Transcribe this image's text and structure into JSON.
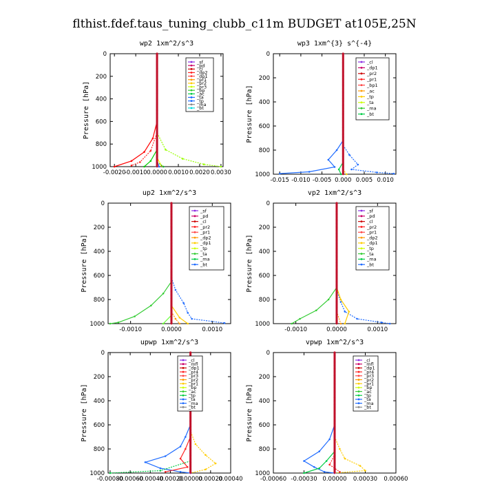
{
  "title": "flthist.fdef.taus_tuning_clubb_c11m  BUDGET at105E,25N",
  "chart_data": [
    {
      "type": "line",
      "title": "wp2  1xm^2/s^3",
      "ylabel": "Pressure [hPa]",
      "xlim": [
        -0.0022,
        0.0031
      ],
      "ylim": [
        1000,
        0
      ],
      "xticks": [
        "-0.0020",
        "-0.0010",
        "0.0000",
        "0.0010",
        "0.0020",
        "0.0030"
      ],
      "xtick_values": [
        -0.002,
        -0.001,
        0.0,
        0.001,
        0.002,
        0.003
      ],
      "yticks": [
        0,
        200,
        400,
        600,
        800,
        1000
      ],
      "legend": [
        "_sf",
        "_pd",
        "_cl",
        "_dp2",
        "_dp1",
        "_pr1",
        "_pr2",
        "_pr3",
        "_bp",
        "_ac",
        "_ta",
        "_tp",
        "_ma",
        "_bt"
      ],
      "series": [
        {
          "name": "_dp2",
          "color": "#ff0000",
          "points": [
            [
              0.0,
              0
            ],
            [
              0.0,
              600
            ],
            [
              -0.0002,
              750
            ],
            [
              -0.0006,
              870
            ],
            [
              -0.0012,
              950
            ],
            [
              -0.002,
              1000
            ]
          ]
        },
        {
          "name": "_dp1",
          "color": "#ff2222",
          "points": [
            [
              0.0,
              0
            ],
            [
              0.0,
              700
            ],
            [
              -0.0003,
              860
            ],
            [
              -0.0008,
              960
            ],
            [
              -0.0012,
              990
            ]
          ]
        },
        {
          "name": "_pr1",
          "color": "#ffff00",
          "points": [
            [
              0.0,
              0
            ],
            [
              0.0,
              920
            ],
            [
              0.0002,
              990
            ],
            [
              0.0003,
              1000
            ]
          ]
        },
        {
          "name": "_pr2",
          "color": "#99ff00",
          "points": [
            [
              0.0,
              0
            ],
            [
              0.0,
              700
            ],
            [
              0.0004,
              850
            ],
            [
              0.0012,
              930
            ],
            [
              0.0022,
              980
            ],
            [
              0.003,
              1000
            ]
          ]
        },
        {
          "name": "_bp",
          "color": "#00cc00",
          "points": [
            [
              0.0,
              0
            ],
            [
              0.0,
              850
            ],
            [
              -0.0003,
              950
            ],
            [
              -0.0006,
              1000
            ]
          ]
        },
        {
          "name": "_ac",
          "color": "#00aa44",
          "points": [
            [
              0.0,
              0
            ],
            [
              0.0,
              960
            ],
            [
              0.0003,
              1000
            ]
          ]
        },
        {
          "name": "_ta",
          "color": "#1e6bff",
          "points": [
            [
              0.0,
              0
            ],
            [
              0.0,
              950
            ],
            [
              0.0001,
              1000
            ]
          ]
        },
        {
          "name": "_sf",
          "color": "#8a2be2",
          "points": [
            [
              0.0,
              0
            ],
            [
              0.0,
              1000
            ]
          ]
        }
      ]
    },
    {
      "type": "line",
      "title": "wp3  1xm^{3} s^{-4}",
      "ylabel": "Pressure [hPa]",
      "xlim": [
        -0.0165,
        0.0125
      ],
      "ylim": [
        1000,
        0
      ],
      "xticks": [
        "-0.015",
        "-0.010",
        "-0.005",
        "0.000",
        "0.005",
        "0.010"
      ],
      "xtick_values": [
        -0.015,
        -0.01,
        -0.005,
        0.0,
        0.005,
        0.01
      ],
      "yticks": [
        0,
        200,
        400,
        600,
        800,
        1000
      ],
      "legend": [
        "_cl",
        "_dp1",
        "_pr2",
        "_pr1",
        "_bp1",
        "_ac",
        "_tp",
        "_ta",
        "_ma",
        "_bt"
      ],
      "series": [
        {
          "name": "_tp",
          "color": "#1e6bff",
          "points": [
            [
              0.0,
              0
            ],
            [
              0.0,
              720
            ],
            [
              -0.0015,
              800
            ],
            [
              -0.0035,
              880
            ],
            [
              -0.002,
              940
            ],
            [
              -0.008,
              980
            ],
            [
              -0.015,
              995
            ]
          ]
        },
        {
          "name": "_ta",
          "color": "#1e6bff",
          "points": [
            [
              0.0,
              0
            ],
            [
              0.0,
              760
            ],
            [
              0.0015,
              840
            ],
            [
              0.0035,
              920
            ],
            [
              0.002,
              960
            ],
            [
              0.008,
              985
            ],
            [
              0.012,
              995
            ]
          ]
        },
        {
          "name": "_ac",
          "color": "#00cc44",
          "points": [
            [
              0.0,
              0
            ],
            [
              0.0,
              900
            ],
            [
              -0.001,
              960
            ],
            [
              -0.0005,
              1000
            ]
          ]
        },
        {
          "name": "_pr1",
          "color": "#ffcc00",
          "points": [
            [
              0.0,
              0
            ],
            [
              0.0,
              960
            ],
            [
              0.0008,
              1000
            ]
          ]
        },
        {
          "name": "_cl",
          "color": "#cc0000",
          "points": [
            [
              0.0,
              0
            ],
            [
              0.0,
              1000
            ]
          ]
        }
      ]
    },
    {
      "type": "line",
      "title": "up2  1xm^2/s^3",
      "ylabel": "Pressure [hPa]",
      "xlim": [
        -0.00155,
        0.00145
      ],
      "ylim": [
        1000,
        0
      ],
      "xticks": [
        "-0.0010",
        "0.0000",
        "0.0010"
      ],
      "xtick_values": [
        -0.001,
        0.0,
        0.001
      ],
      "yticks": [
        0,
        200,
        400,
        600,
        800,
        1000
      ],
      "legend": [
        "_sf",
        "_pd",
        "_cl",
        "_pr2",
        "_pr1",
        "_dp2",
        "_dp1",
        "_tp",
        "_ta",
        "_ma",
        "_bt"
      ],
      "series": [
        {
          "name": "_dp1",
          "color": "#33cc33",
          "points": [
            [
              0.0,
              0
            ],
            [
              0.0,
              650
            ],
            [
              -0.0002,
              750
            ],
            [
              -0.0005,
              850
            ],
            [
              -0.0009,
              940
            ],
            [
              -0.0013,
              990
            ],
            [
              -0.0015,
              1000
            ]
          ]
        },
        {
          "name": "_tp",
          "color": "#1e6bff",
          "points": [
            [
              0.0,
              0
            ],
            [
              0.0,
              620
            ],
            [
              0.0001,
              720
            ],
            [
              0.0003,
              830
            ],
            [
              0.0004,
              910
            ],
            [
              0.0005,
              960
            ],
            [
              0.0013,
              995
            ]
          ]
        },
        {
          "name": "_pr1",
          "color": "#ffcc00",
          "points": [
            [
              0.0,
              0
            ],
            [
              0.0,
              850
            ],
            [
              0.0002,
              950
            ],
            [
              0.0004,
              1000
            ]
          ]
        },
        {
          "name": "_pr2",
          "color": "#ff9900",
          "points": [
            [
              0.0,
              0
            ],
            [
              0.0,
              900
            ],
            [
              0.0001,
              960
            ],
            [
              0.0002,
              1000
            ]
          ]
        },
        {
          "name": "_dp2",
          "color": "#66ff33",
          "points": [
            [
              0.0,
              0
            ],
            [
              0.0,
              930
            ],
            [
              -0.0002,
              1000
            ]
          ]
        },
        {
          "name": "_cl",
          "color": "#cc0000",
          "points": [
            [
              0.0,
              0
            ],
            [
              0.0,
              1000
            ]
          ]
        }
      ]
    },
    {
      "type": "line",
      "title": "vp2  1xm^2/s^3",
      "ylabel": "Pressure [hPa]",
      "xlim": [
        -0.00155,
        0.00145
      ],
      "ylim": [
        1000,
        0
      ],
      "xticks": [
        "-0.0010",
        "0.0000",
        "0.0010"
      ],
      "xtick_values": [
        -0.001,
        0.0,
        0.001
      ],
      "yticks": [
        0,
        200,
        400,
        600,
        800,
        1000
      ],
      "legend": [
        "_sf",
        "_pd",
        "_cl",
        "_pr2",
        "_pr1",
        "_dp2",
        "_dp1",
        "_tp",
        "_ta",
        "_ma",
        "_bt"
      ],
      "series": [
        {
          "name": "_dp1",
          "color": "#33cc33",
          "points": [
            [
              0.0,
              0
            ],
            [
              0.0,
              700
            ],
            [
              -0.0002,
              800
            ],
            [
              -0.0005,
              890
            ],
            [
              -0.0009,
              960
            ],
            [
              -0.0011,
              1000
            ]
          ]
        },
        {
          "name": "_tp",
          "color": "#1e6bff",
          "points": [
            [
              0.0,
              0
            ],
            [
              0.0,
              720
            ],
            [
              0.0001,
              820
            ],
            [
              0.0002,
              900
            ],
            [
              0.0005,
              960
            ],
            [
              0.0011,
              990
            ],
            [
              0.0013,
              1000
            ]
          ]
        },
        {
          "name": "_pr1",
          "color": "#ffcc00",
          "points": [
            [
              0.0,
              0
            ],
            [
              0.0,
              700
            ],
            [
              0.0001,
              800
            ],
            [
              0.0003,
              900
            ],
            [
              0.0002,
              1000
            ]
          ]
        },
        {
          "name": "_pr2",
          "color": "#ff9900",
          "points": [
            [
              0.0,
              0
            ],
            [
              0.0,
              900
            ],
            [
              0.0001,
              1000
            ]
          ]
        },
        {
          "name": "_cl",
          "color": "#cc0000",
          "points": [
            [
              0.0,
              0
            ],
            [
              0.0,
              1000
            ]
          ]
        }
      ]
    },
    {
      "type": "line",
      "title": "upwp  1xm^2/s^3",
      "ylabel": "Pressure [hPa]",
      "xlim": [
        -0.00082,
        0.0004
      ],
      "ylim": [
        1000,
        0
      ],
      "xticks": [
        "-0.00080",
        "-0.00060",
        "-0.00040",
        "-0.00020",
        "0.00000",
        "0.00020",
        "0.00040"
      ],
      "xtick_values": [
        -0.0008,
        -0.0006,
        -0.0004,
        -0.0002,
        0.0,
        0.0002,
        0.0004
      ],
      "yticks": [
        0,
        200,
        400,
        600,
        800,
        1000
      ],
      "legend": [
        "_cl",
        "_mfl",
        "_dp1",
        "_pr4",
        "_pr3",
        "_pr2",
        "_pr1",
        "_bp",
        "_ac",
        "_tp",
        "_ta",
        "_ma",
        "_bt"
      ],
      "series": [
        {
          "name": "_tp",
          "color": "#1e6bff",
          "points": [
            [
              0.0,
              0
            ],
            [
              0.0,
              600
            ],
            [
              -5e-05,
              700
            ],
            [
              -0.0001,
              780
            ],
            [
              -0.00025,
              860
            ],
            [
              -0.00045,
              910
            ],
            [
              -0.0003,
              960
            ],
            [
              -0.0001,
              990
            ],
            [
              0.0,
              1000
            ]
          ]
        },
        {
          "name": "_pr1",
          "color": "#ffcc00",
          "points": [
            [
              0.0,
              0
            ],
            [
              0.0,
              650
            ],
            [
              5e-05,
              760
            ],
            [
              0.00015,
              850
            ],
            [
              0.00025,
              920
            ],
            [
              0.00015,
              970
            ],
            [
              0.0,
              1000
            ]
          ]
        },
        {
          "name": "_dp1",
          "color": "#ff2222",
          "points": [
            [
              0.0,
              0
            ],
            [
              0.0,
              700
            ],
            [
              -5e-05,
              800
            ],
            [
              -0.0001,
              880
            ],
            [
              -3e-05,
              950
            ],
            [
              -0.00025,
              990
            ]
          ]
        },
        {
          "name": "_ac",
          "color": "#00cc44",
          "points": [
            [
              0.0,
              0
            ],
            [
              0.0,
              900
            ],
            [
              -0.0003,
              980
            ],
            [
              -0.0008,
              1000
            ]
          ]
        },
        {
          "name": "_mfl",
          "color": "#cc0066",
          "points": [
            [
              0.0,
              0
            ],
            [
              0.0,
              1000
            ]
          ]
        },
        {
          "name": "_cl",
          "color": "#9933ff",
          "points": [
            [
              0.0,
              0
            ],
            [
              0.0,
              1000
            ]
          ]
        }
      ]
    },
    {
      "type": "line",
      "title": "vpwp  1xm^2/s^3",
      "ylabel": "Pressure [hPa]",
      "xlim": [
        -0.0006,
        0.0006
      ],
      "ylim": [
        1000,
        0
      ],
      "xticks": [
        "-0.00060",
        "-0.00030",
        "0.00000",
        "0.00030",
        "0.00060"
      ],
      "xtick_values": [
        -0.0006,
        -0.0003,
        0.0,
        0.0003,
        0.0006
      ],
      "yticks": [
        0,
        200,
        400,
        600,
        800,
        1000
      ],
      "legend": [
        "_cl",
        "_mfl",
        "_dp1",
        "_pr4",
        "_pr3",
        "_pr2",
        "_pr1",
        "_bp",
        "_ac",
        "_tp",
        "_ta",
        "_ma",
        "_bt"
      ],
      "series": [
        {
          "name": "_tp",
          "color": "#1e6bff",
          "points": [
            [
              0.0,
              0
            ],
            [
              0.0,
              600
            ],
            [
              -5e-05,
              720
            ],
            [
              -0.00015,
              820
            ],
            [
              -0.0003,
              900
            ],
            [
              -0.0002,
              950
            ],
            [
              -0.0001,
              990
            ],
            [
              0.0,
              1000
            ]
          ]
        },
        {
          "name": "_pr1",
          "color": "#ffcc00",
          "points": [
            [
              0.0,
              0
            ],
            [
              0.0,
              700
            ],
            [
              5e-05,
              800
            ],
            [
              0.0001,
              880
            ],
            [
              0.00025,
              940
            ],
            [
              0.0003,
              980
            ],
            [
              0.0,
              1000
            ]
          ]
        },
        {
          "name": "_bp",
          "color": "#00cc44",
          "points": [
            [
              0.0,
              0
            ],
            [
              0.0,
              820
            ],
            [
              -8e-05,
              900
            ],
            [
              -0.00015,
              960
            ],
            [
              -0.0003,
              1000
            ]
          ]
        },
        {
          "name": "_dp1",
          "color": "#ff2222",
          "points": [
            [
              0.0,
              0
            ],
            [
              0.0,
              850
            ],
            [
              -5e-05,
              930
            ],
            [
              5e-05,
              990
            ]
          ]
        },
        {
          "name": "_mfl",
          "color": "#cc0066",
          "points": [
            [
              0.0,
              0
            ],
            [
              0.0,
              1000
            ]
          ]
        },
        {
          "name": "_cl",
          "color": "#9933ff",
          "points": [
            [
              0.0,
              0
            ],
            [
              0.0,
              1000
            ]
          ]
        }
      ]
    }
  ]
}
